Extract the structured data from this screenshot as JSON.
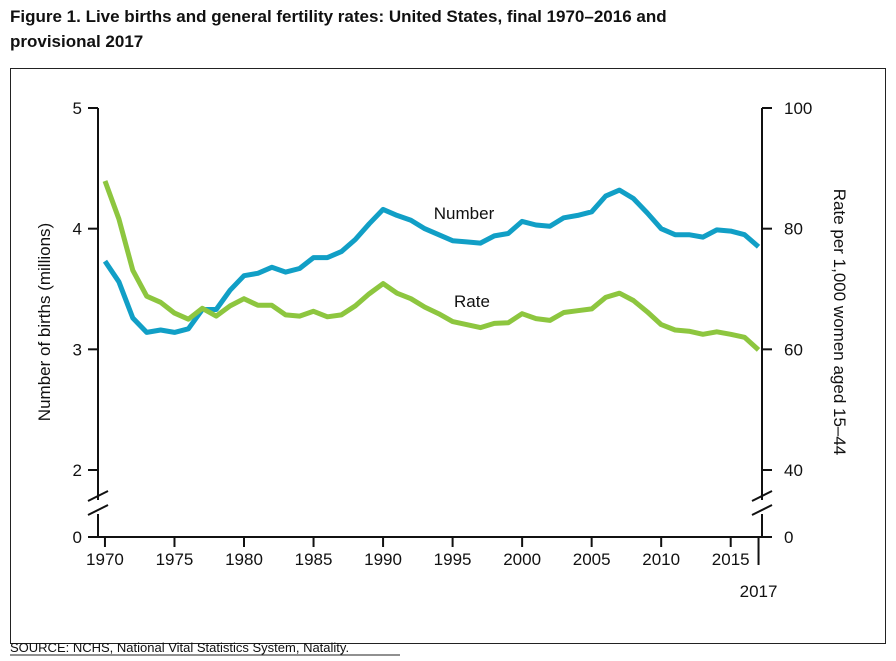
{
  "chart_data": {
    "type": "line",
    "title": "Figure 1. Live births and general fertility rates: United States, final 1970–2016 and",
    "subtitle": "provisional 2017",
    "source": "SOURCE: NCHS, National Vital Statistics System, Natality.",
    "y_label": "Number of births (millions)",
    "y2_label": "Rate per 1,000 women aged 15–44",
    "x": [
      1970,
      1971,
      1972,
      1973,
      1974,
      1975,
      1976,
      1977,
      1978,
      1979,
      1980,
      1981,
      1982,
      1983,
      1984,
      1985,
      1986,
      1987,
      1988,
      1989,
      1990,
      1991,
      1992,
      1993,
      1994,
      1995,
      1996,
      1997,
      1998,
      1999,
      2000,
      2001,
      2002,
      2003,
      2004,
      2005,
      2006,
      2007,
      2008,
      2009,
      2010,
      2011,
      2012,
      2013,
      2014,
      2015,
      2016,
      2017
    ],
    "series": [
      {
        "name": "Number",
        "color": "#119fc6",
        "axis": "y",
        "values": [
          3.73,
          3.56,
          3.26,
          3.14,
          3.16,
          3.14,
          3.17,
          3.33,
          3.33,
          3.49,
          3.61,
          3.63,
          3.68,
          3.64,
          3.67,
          3.76,
          3.76,
          3.81,
          3.91,
          4.04,
          4.16,
          4.11,
          4.07,
          4.0,
          3.95,
          3.9,
          3.89,
          3.88,
          3.94,
          3.96,
          4.06,
          4.03,
          4.02,
          4.09,
          4.11,
          4.14,
          4.27,
          4.32,
          4.25,
          4.13,
          4.0,
          3.95,
          3.95,
          3.93,
          3.99,
          3.98,
          3.95,
          3.85
        ]
      },
      {
        "name": "Rate",
        "color": "#8dc63f",
        "axis": "y2",
        "values": [
          87.9,
          81.6,
          73.1,
          68.8,
          67.8,
          66.0,
          65.0,
          66.8,
          65.5,
          67.2,
          68.4,
          67.3,
          67.3,
          65.7,
          65.5,
          66.3,
          65.4,
          65.7,
          67.2,
          69.2,
          70.9,
          69.3,
          68.4,
          67.0,
          65.9,
          64.6,
          64.1,
          63.6,
          64.3,
          64.4,
          65.9,
          65.1,
          64.8,
          66.1,
          66.4,
          66.7,
          68.6,
          69.3,
          68.1,
          66.2,
          64.1,
          63.2,
          63.0,
          62.5,
          62.9,
          62.5,
          62.0,
          59.9
        ]
      }
    ],
    "xlim": [
      1969.5,
      2017.25
    ],
    "xticks": [
      1970,
      1975,
      1980,
      1985,
      1990,
      1995,
      2000,
      2005,
      2010,
      2015,
      2017
    ],
    "ylim": [
      0,
      5
    ],
    "yticks": [
      0,
      2,
      3,
      4,
      5
    ],
    "y_break": [
      0,
      2
    ],
    "y2lim": [
      0,
      100
    ],
    "y2ticks": [
      0,
      40,
      60,
      80,
      100
    ],
    "y2_break": [
      0,
      40
    ],
    "grid": false
  }
}
